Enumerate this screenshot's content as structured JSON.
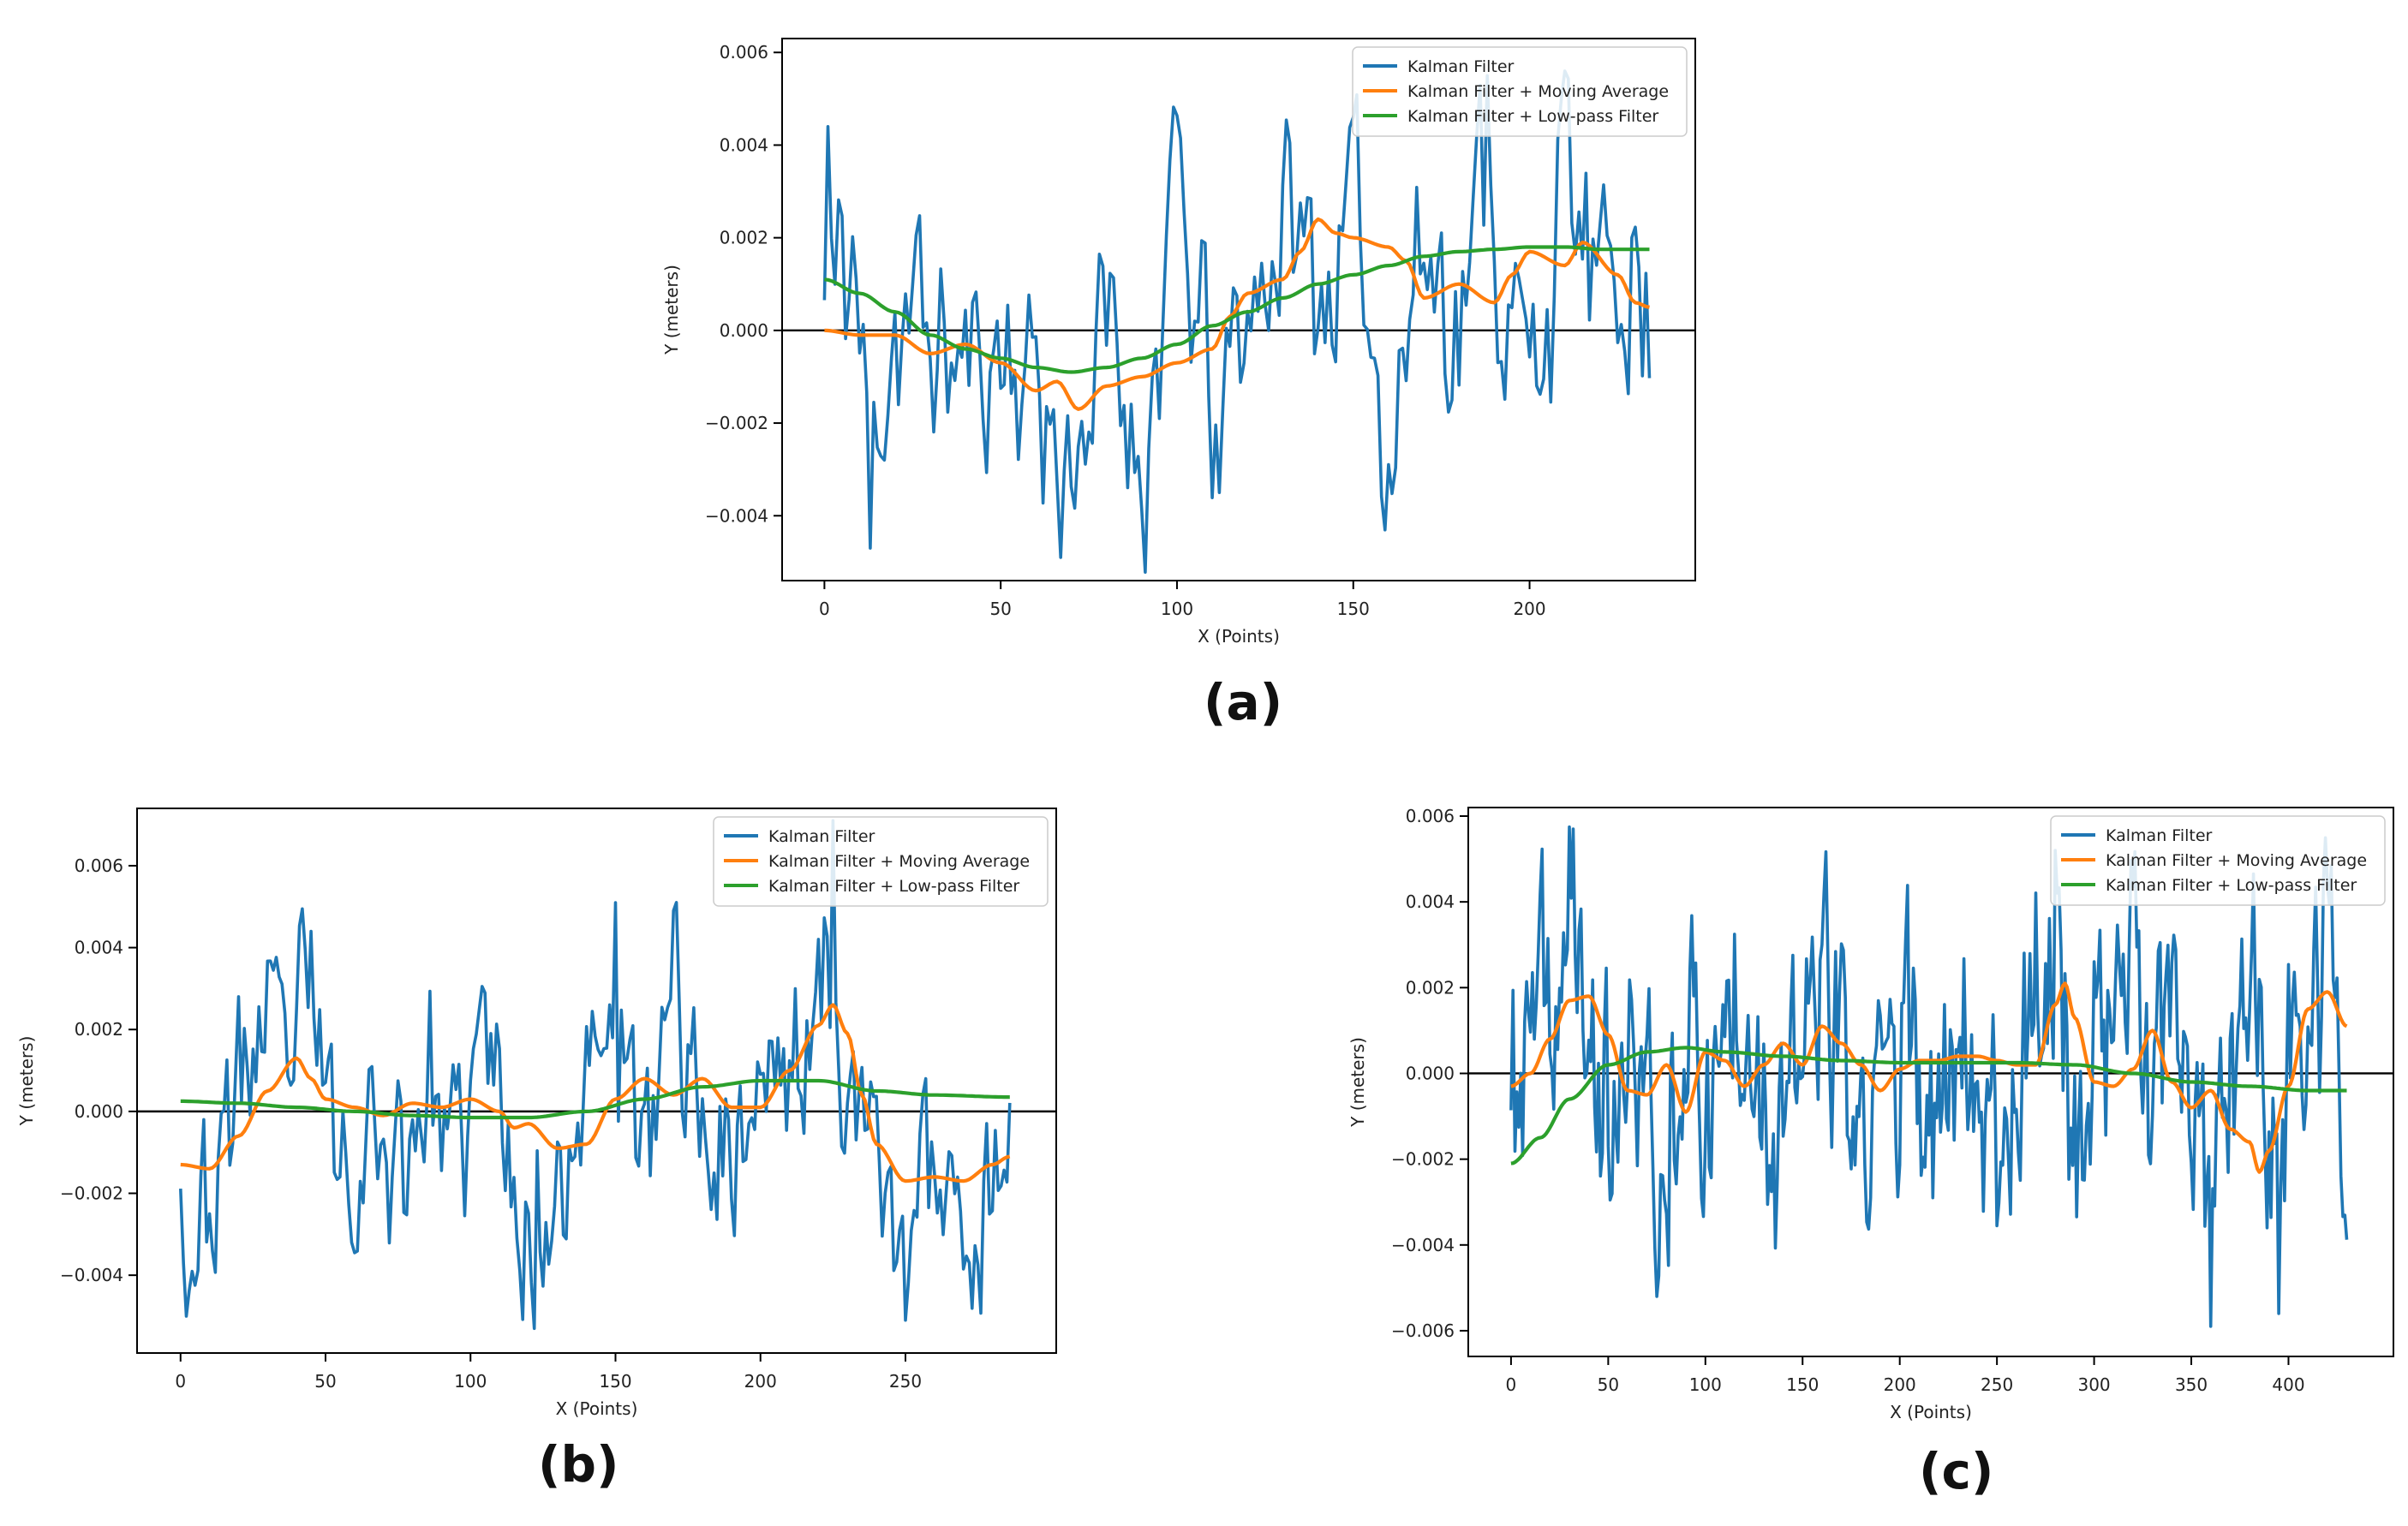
{
  "figure": {
    "colors": {
      "kalman": "#1f77b4",
      "moving_average": "#ff7f0e",
      "low_pass": "#2ca02c",
      "zero_line": "#000000",
      "axes": "#000000"
    }
  },
  "chart_data": [
    {
      "id": "a",
      "panel_label": "(a)",
      "type": "line",
      "xlabel": "X (Points)",
      "ylabel": "Y (meters)",
      "xlim": [
        -12,
        247
      ],
      "ylim": [
        -0.0054,
        0.0063
      ],
      "xticks": [
        0,
        50,
        100,
        150,
        200
      ],
      "yticks": [
        -0.004,
        -0.002,
        0.0,
        0.002,
        0.004,
        0.006
      ],
      "ytick_labels": [
        "−0.004",
        "−0.002",
        "0.000",
        "0.002",
        "0.004",
        "0.006"
      ],
      "legend": {
        "position": "top-right",
        "entries": [
          "Kalman Filter",
          "Kalman Filter + Moving Average",
          "Kalman Filter + Low-pass Filter"
        ]
      },
      "zero_line": 0.0,
      "n_points": 235,
      "noise_amplitude": 0.0023,
      "noise_seed": 11,
      "series": [
        {
          "name": "Kalman Filter",
          "color": "#1f77b4",
          "kind": "noisy",
          "anchors_x": [
            0,
            1,
            3,
            8,
            13,
            20,
            30,
            42,
            50,
            60,
            67,
            80,
            90,
            100,
            105,
            112,
            120,
            130,
            140,
            150,
            160,
            170,
            180,
            188,
            195,
            200,
            205,
            210,
            215,
            220,
            228,
            234
          ],
          "anchors_y": [
            0.0011,
            0.0044,
            0.0013,
            0.0027,
            -0.0047,
            0.001,
            -0.0005,
            -0.0015,
            -0.0005,
            -0.0015,
            -0.0049,
            -0.001,
            -0.0041,
            0.0046,
            0.0002,
            -0.0035,
            0.0008,
            0.0045,
            0.002,
            0.0035,
            -0.0028,
            0.003,
            0.0015,
            0.0055,
            0.0005,
            -0.0024,
            0.002,
            0.0056,
            0.003,
            0.0005,
            0.0042,
            -0.0007
          ],
          "anchor_keep": [
            1,
            13,
            67,
            105,
            112,
            188,
            210
          ]
        },
        {
          "name": "Kalman Filter + Moving Average",
          "color": "#ff7f0e",
          "kind": "smooth",
          "x": [
            0,
            10,
            20,
            30,
            40,
            50,
            60,
            66,
            72,
            80,
            90,
            100,
            110,
            115,
            120,
            130,
            135,
            140,
            145,
            150,
            160,
            165,
            170,
            180,
            190,
            195,
            200,
            210,
            215,
            225,
            230,
            234
          ],
          "y": [
            0.0,
            -0.0001,
            -0.0001,
            -0.0005,
            -0.0003,
            -0.0007,
            -0.0013,
            -0.0011,
            -0.0017,
            -0.0012,
            -0.001,
            -0.0007,
            -0.0004,
            0.0003,
            0.0008,
            0.0011,
            0.0017,
            0.0024,
            0.0021,
            0.002,
            0.0018,
            0.0015,
            0.0007,
            0.001,
            0.0006,
            0.0012,
            0.0017,
            0.0014,
            0.0019,
            0.0012,
            0.0006,
            0.0005
          ]
        },
        {
          "name": "Kalman Filter + Low-pass Filter",
          "color": "#2ca02c",
          "kind": "smooth",
          "x": [
            0,
            10,
            20,
            30,
            40,
            50,
            60,
            70,
            80,
            90,
            100,
            110,
            120,
            130,
            140,
            150,
            160,
            170,
            180,
            190,
            200,
            210,
            220,
            234
          ],
          "y": [
            0.0011,
            0.0008,
            0.0004,
            -0.0001,
            -0.0004,
            -0.0006,
            -0.0008,
            -0.0009,
            -0.0008,
            -0.0006,
            -0.0003,
            0.0001,
            0.0004,
            0.0007,
            0.001,
            0.0012,
            0.0014,
            0.0016,
            0.0017,
            0.00175,
            0.0018,
            0.0018,
            0.00175,
            0.00175
          ]
        }
      ]
    },
    {
      "id": "b",
      "panel_label": "(b)",
      "type": "line",
      "xlabel": "X (Points)",
      "ylabel": "Y (meters)",
      "xlim": [
        -15,
        302
      ],
      "ylim": [
        -0.0059,
        0.0074
      ],
      "xticks": [
        0,
        50,
        100,
        150,
        200,
        250
      ],
      "yticks": [
        -0.004,
        -0.002,
        0.0,
        0.002,
        0.004,
        0.006
      ],
      "ytick_labels": [
        "−0.004",
        "−0.002",
        "0.000",
        "0.002",
        "0.004",
        "0.006"
      ],
      "legend": {
        "position": "top-right",
        "entries": [
          "Kalman Filter",
          "Kalman Filter + Moving Average",
          "Kalman Filter + Low-pass Filter"
        ]
      },
      "zero_line": 0.0,
      "n_points": 287,
      "noise_amplitude": 0.0022,
      "noise_seed": 23,
      "series": [
        {
          "name": "Kalman Filter",
          "color": "#1f77b4",
          "kind": "noisy",
          "anchors_x": [
            0,
            2,
            10,
            20,
            28,
            35,
            45,
            55,
            65,
            75,
            85,
            95,
            105,
            115,
            122,
            135,
            150,
            160,
            170,
            180,
            190,
            200,
            210,
            218,
            225,
            235,
            250,
            262,
            275,
            286
          ],
          "anchors_y": [
            -0.0005,
            -0.005,
            -0.0045,
            0.001,
            0.0037,
            0.001,
            0.0044,
            -0.0025,
            0.0,
            -0.0028,
            0.002,
            -0.003,
            0.003,
            -0.002,
            -0.0053,
            -0.0005,
            0.0051,
            -0.003,
            0.0049,
            0.0,
            -0.0015,
            0.0016,
            0.002,
            0.003,
            0.0071,
            -0.002,
            -0.0051,
            -0.002,
            -0.004,
            -0.002
          ],
          "anchor_keep": [
            2,
            45,
            122,
            150,
            170,
            225,
            250
          ]
        },
        {
          "name": "Kalman Filter + Moving Average",
          "color": "#ff7f0e",
          "kind": "smooth",
          "x": [
            0,
            10,
            20,
            30,
            40,
            45,
            50,
            60,
            70,
            80,
            90,
            100,
            110,
            115,
            120,
            130,
            140,
            150,
            160,
            170,
            180,
            190,
            200,
            210,
            220,
            225,
            230,
            235,
            240,
            250,
            260,
            270,
            280,
            286
          ],
          "y": [
            -0.0013,
            -0.0014,
            -0.0006,
            0.0005,
            0.0013,
            0.0008,
            0.0003,
            0.0001,
            -0.0001,
            0.0002,
            0.0001,
            0.0003,
            0.0,
            -0.0004,
            -0.0003,
            -0.0009,
            -0.0008,
            0.0003,
            0.0008,
            0.0004,
            0.0008,
            0.0001,
            0.0001,
            0.001,
            0.0021,
            0.0026,
            0.0019,
            0.0004,
            -0.0008,
            -0.0017,
            -0.0016,
            -0.0017,
            -0.0013,
            -0.0011
          ]
        },
        {
          "name": "Kalman Filter + Low-pass Filter",
          "color": "#2ca02c",
          "kind": "smooth",
          "x": [
            0,
            20,
            40,
            60,
            80,
            100,
            120,
            140,
            160,
            180,
            200,
            220,
            240,
            260,
            286
          ],
          "y": [
            0.00025,
            0.0002,
            0.0001,
            0.0,
            -0.0001,
            -0.00015,
            -0.00015,
            0.0,
            0.0003,
            0.0006,
            0.00075,
            0.00075,
            0.0005,
            0.0004,
            0.00035
          ]
        }
      ]
    },
    {
      "id": "c",
      "panel_label": "(c)",
      "type": "line",
      "xlabel": "X (Points)",
      "ylabel": "Y (meters)",
      "xlim": [
        -22,
        454
      ],
      "ylim": [
        -0.0066,
        0.0062
      ],
      "xticks": [
        0,
        50,
        100,
        150,
        200,
        250,
        300,
        350,
        400
      ],
      "yticks": [
        -0.006,
        -0.004,
        -0.002,
        0.0,
        0.002,
        0.004,
        0.006
      ],
      "ytick_labels": [
        "−0.006",
        "−0.004",
        "−0.002",
        "0.000",
        "0.002",
        "0.004",
        "0.006"
      ],
      "legend": {
        "position": "top-right",
        "entries": [
          "Kalman Filter",
          "Kalman Filter + Moving Average",
          "Kalman Filter + Low-pass Filter"
        ]
      },
      "zero_line": 0.0,
      "n_points": 431,
      "noise_amplitude": 0.0026,
      "noise_seed": 37,
      "series": [
        {
          "name": "Kalman Filter",
          "color": "#1f77b4",
          "kind": "noisy",
          "anchors_x": [
            0,
            10,
            20,
            32,
            40,
            55,
            65,
            75,
            90,
            100,
            120,
            140,
            160,
            180,
            200,
            215,
            230,
            250,
            270,
            280,
            290,
            305,
            320,
            330,
            345,
            350,
            360,
            370,
            380,
            395,
            405,
            420,
            430
          ],
          "anchors_y": [
            -0.0017,
            0.001,
            0.002,
            0.0057,
            0.001,
            -0.003,
            0.002,
            -0.0052,
            0.003,
            -0.001,
            0.0046,
            -0.003,
            0.004,
            -0.004,
            0.002,
            -0.004,
            0.003,
            -0.002,
            0.0035,
            0.0052,
            -0.002,
            0.002,
            0.0045,
            -0.002,
            0.001,
            -0.004,
            -0.0059,
            0.0,
            0.0045,
            -0.0056,
            0.002,
            0.0037,
            0.0
          ],
          "anchor_keep": [
            32,
            75,
            280,
            360,
            395
          ]
        },
        {
          "name": "Kalman Filter + Moving Average",
          "color": "#ff7f0e",
          "kind": "smooth",
          "x": [
            0,
            10,
            20,
            30,
            40,
            50,
            60,
            70,
            80,
            90,
            100,
            110,
            120,
            130,
            140,
            150,
            160,
            170,
            180,
            190,
            200,
            210,
            220,
            230,
            240,
            250,
            260,
            270,
            280,
            285,
            290,
            300,
            310,
            320,
            330,
            340,
            350,
            360,
            370,
            380,
            385,
            390,
            400,
            410,
            420,
            430
          ],
          "y": [
            -0.0003,
            0.0,
            0.0008,
            0.0017,
            0.0018,
            0.0009,
            -0.0004,
            -0.0005,
            0.0002,
            -0.0009,
            0.0005,
            0.0003,
            -0.0003,
            0.0002,
            0.0007,
            0.0002,
            0.0011,
            0.0007,
            0.0002,
            -0.0004,
            0.0001,
            0.0003,
            0.0003,
            0.0004,
            0.0004,
            0.0003,
            0.0002,
            0.0002,
            0.0016,
            0.0021,
            0.0013,
            -0.0002,
            -0.0003,
            0.0001,
            0.001,
            -0.0002,
            -0.0008,
            -0.0004,
            -0.0013,
            -0.0016,
            -0.0023,
            -0.0018,
            -0.0003,
            0.0015,
            0.0019,
            0.0011
          ]
        },
        {
          "name": "Kalman Filter + Low-pass Filter",
          "color": "#2ca02c",
          "kind": "smooth",
          "x": [
            0,
            15,
            30,
            50,
            70,
            90,
            110,
            140,
            170,
            200,
            230,
            260,
            290,
            320,
            350,
            380,
            410,
            430
          ],
          "y": [
            -0.0021,
            -0.0015,
            -0.0006,
            0.0002,
            0.0005,
            0.0006,
            0.0005,
            0.0004,
            0.0003,
            0.00025,
            0.00025,
            0.00025,
            0.0002,
            0.0,
            -0.0002,
            -0.0003,
            -0.0004,
            -0.0004
          ]
        }
      ]
    }
  ]
}
